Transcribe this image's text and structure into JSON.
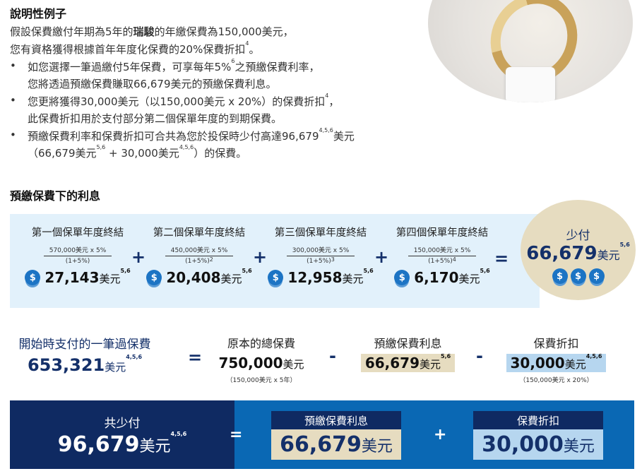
{
  "title": "說明性例子",
  "intro": {
    "l1a": "假設保費繳付年期為5年的",
    "l1b": "瑞駿",
    "l1c": "的年繳保費為150,000美元，",
    "l2": "您有資格獲得根據首年年度化保費的20%保費折扣",
    "l2sup": "4",
    "l2end": "。"
  },
  "bullets": [
    {
      "a": "如您選擇一筆過繳付5年保費，可享每年5%",
      "asup": "6",
      "a2": "之預繳保費利率，",
      "b": "您將透過預繳保費賺取66,679美元的預繳保費利息。"
    },
    {
      "a": "您更將獲得30,000美元（以150,000美元 x 20%）的保費折扣",
      "asup": "4",
      "a2": "，",
      "b": "此保費折扣用於支付部分第二個保單年度的到期保費。"
    },
    {
      "a": "預繳保費利率和保費折扣可合共為您於投保時少付高達96,679",
      "asup": "4,5,6",
      "a2": "美元",
      "b": "（66,679美元",
      "bsup": "5,6",
      "b2": " + 30,000美元",
      "b2sup": "4,5,6",
      "b3": "）的保費。"
    }
  ],
  "bullet_symbol": "•",
  "section2": "預繳保費下的利息",
  "years": [
    {
      "h": "第一個保單年度終結",
      "num": "570,000美元 x 5%",
      "den": "(1+5%)",
      "densup": "",
      "val": "27,143",
      "unit": "美元",
      "sup": "5,6"
    },
    {
      "h": "第二個保單年度終結",
      "num": "450,000美元 x 5%",
      "den": "(1+5%)",
      "densup": "2",
      "val": "20,408",
      "unit": "美元",
      "sup": "5,6"
    },
    {
      "h": "第三個保單年度終結",
      "num": "300,000美元 x 5%",
      "den": "(1+5%)",
      "densup": "3",
      "val": "12,958",
      "unit": "美元",
      "sup": "5,6"
    },
    {
      "h": "第四個保單年度終結",
      "num": "150,000美元 x 5%",
      "den": "(1+5%)",
      "densup": "4",
      "val": "6,170",
      "unit": "美元",
      "sup": "5,6"
    }
  ],
  "ops": {
    "plus": "+",
    "eq": "=",
    "minus": "-"
  },
  "coin_icon": "dollar-coin-icon",
  "coin_symbol": "$",
  "total": {
    "h": "少付",
    "val": "66,679",
    "unit": "美元",
    "sup": "5,6"
  },
  "eq2": {
    "lump": {
      "h": "開始時支付的一筆過保費",
      "val": "653,321",
      "unit": "美元",
      "sup": "4,5,6"
    },
    "orig": {
      "h": "原本的總保費",
      "val": "750,000",
      "unit": "美元",
      "note": "（150,000美元 x 5年）"
    },
    "interest": {
      "h": "預繳保費利息",
      "val": "66,679",
      "unit": "美元",
      "sup": "5,6"
    },
    "discount": {
      "h": "保費折扣",
      "val": "30,000",
      "unit": "美元",
      "sup": "4,5,6",
      "note": "（150,000美元 x 20%）"
    }
  },
  "band": {
    "h": "共少付",
    "val": "96,679",
    "unit": "美元",
    "sup": "4,5,6",
    "interest_h": "預繳保費利息",
    "interest_val": "66,679",
    "interest_unit": "美元",
    "discount_h": "保費折扣",
    "discount_val": "30,000",
    "discount_unit": "美元"
  },
  "colors": {
    "navy": "#0f2a62",
    "blue": "#0a68b4",
    "panel": "#e2f1fb",
    "beige": "#e6dcc0",
    "lightblue": "#b6d6ef"
  }
}
